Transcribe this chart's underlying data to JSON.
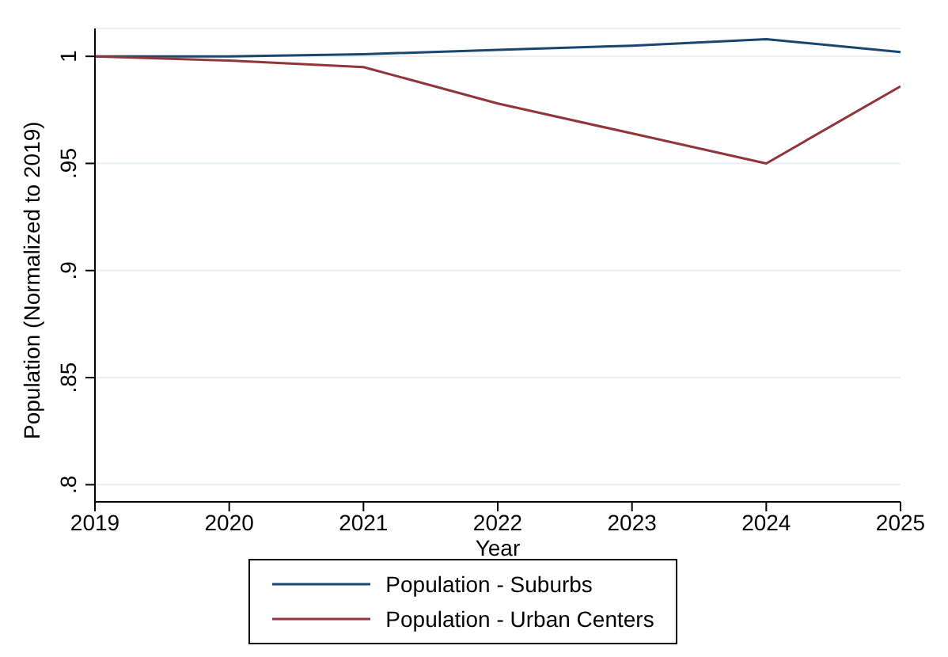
{
  "chart_data": {
    "type": "line",
    "xlabel": "Year",
    "ylabel": "Population (Normalized to 2019)",
    "x": [
      2019,
      2020,
      2021,
      2022,
      2023,
      2024,
      2025
    ],
    "series": [
      {
        "name": "Population - Suburbs",
        "color": "#1a476f",
        "values": [
          1,
          1,
          1.001,
          1.003,
          1.005,
          1.008,
          1.002
        ]
      },
      {
        "name": "Population - Urban Centers",
        "color": "#90353b",
        "values": [
          1,
          0.998,
          0.995,
          0.978,
          0.964,
          0.95,
          0.986
        ]
      }
    ],
    "xlim": [
      2019,
      2025
    ],
    "xticks": [
      2019,
      2020,
      2021,
      2022,
      2023,
      2024,
      2025
    ],
    "ylim": [
      0.792,
      1.013
    ],
    "yticks": [
      {
        "value": 0.8,
        "label": ".8"
      },
      {
        "value": 0.85,
        "label": ".85"
      },
      {
        "value": 0.9,
        "label": ".9"
      },
      {
        "value": 0.95,
        "label": ".95"
      },
      1
    ],
    "grid": "y",
    "legend": "bottom",
    "marker": "none",
    "line_style": "solid"
  }
}
